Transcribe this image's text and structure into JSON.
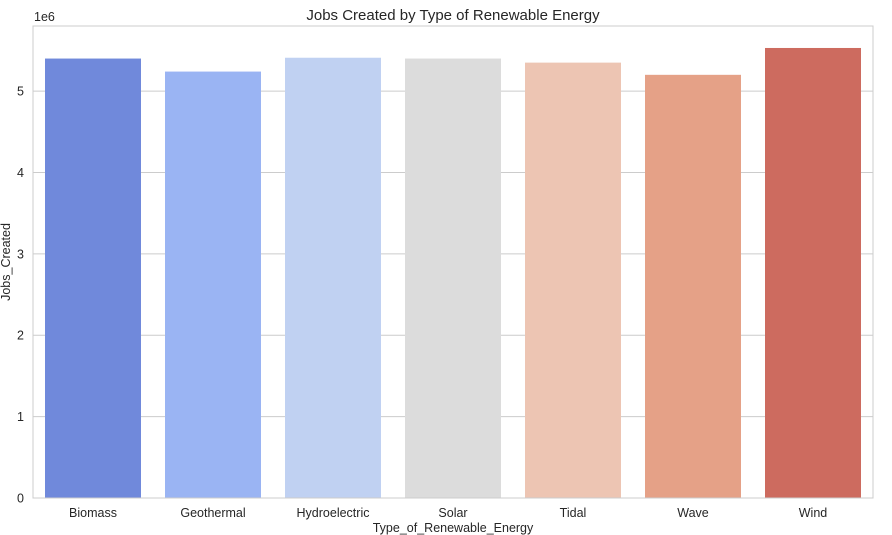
{
  "chart_data": {
    "type": "bar",
    "title": "Jobs Created by Type of Renewable Energy",
    "xlabel": "Type_of_Renewable_Energy",
    "ylabel": "Jobs_Created",
    "y_offset_label": "1e6",
    "y_scale": 1000000,
    "ylim": [
      0,
      5800000
    ],
    "yticks": [
      0,
      1000000,
      2000000,
      3000000,
      4000000,
      5000000
    ],
    "ytick_labels": [
      "0",
      "1",
      "2",
      "3",
      "4",
      "5"
    ],
    "grid": "horizontal",
    "categories": [
      "Biomass",
      "Geothermal",
      "Hydroelectric",
      "Solar",
      "Tidal",
      "Wave",
      "Wind"
    ],
    "values": [
      5400000,
      5240000,
      5410000,
      5400000,
      5350000,
      5200000,
      5530000
    ],
    "colors": [
      "#7089db",
      "#9ab4f3",
      "#c0d1f2",
      "#dcdcdc",
      "#edc5b3",
      "#e5a187",
      "#cd6b5f"
    ]
  }
}
